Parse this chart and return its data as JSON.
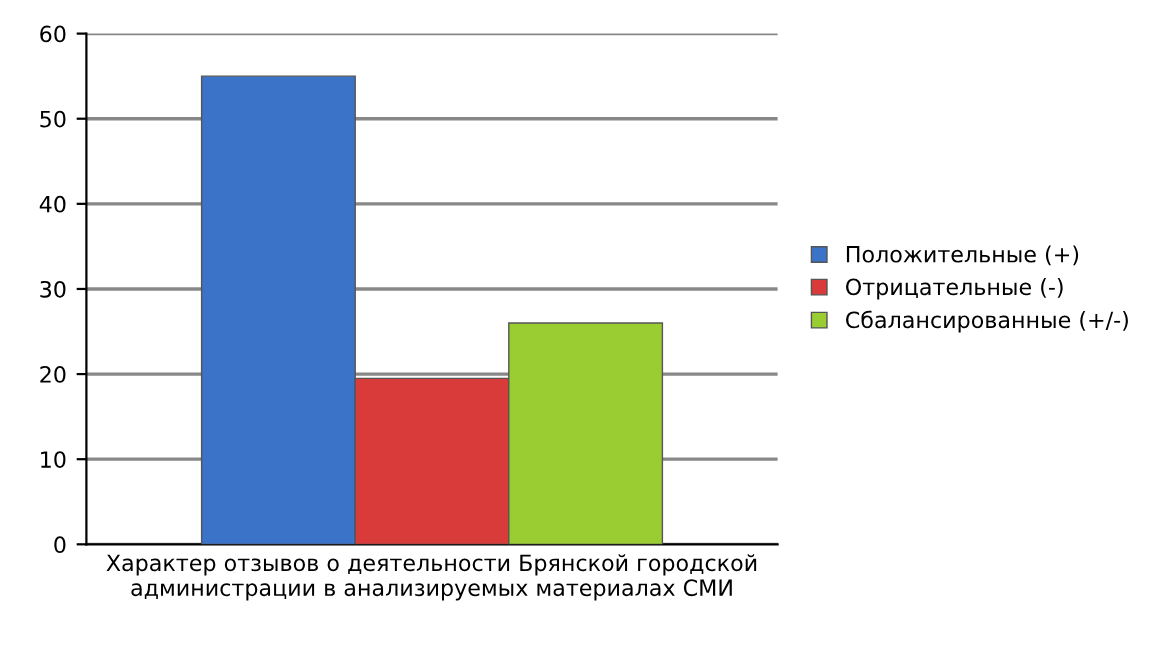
{
  "chart_data": {
    "type": "bar",
    "categories": [
      "Характер отзывов о деятельности Брянской городской\nадминистрации в анализируемых материалах СМИ"
    ],
    "series": [
      {
        "name": "Положительные (+)",
        "color": "#3b73c8",
        "values": [
          55
        ]
      },
      {
        "name": "Отрицательные (-)",
        "color": "#d93a3a",
        "values": [
          19.5
        ]
      },
      {
        "name": "Сбалансированные (+/-)",
        "color": "#9acd32",
        "values": [
          26
        ]
      }
    ],
    "ylim": [
      0,
      60
    ],
    "yticks": [
      0,
      10,
      20,
      30,
      40,
      50,
      60
    ],
    "grid": "y",
    "legend": "right"
  }
}
